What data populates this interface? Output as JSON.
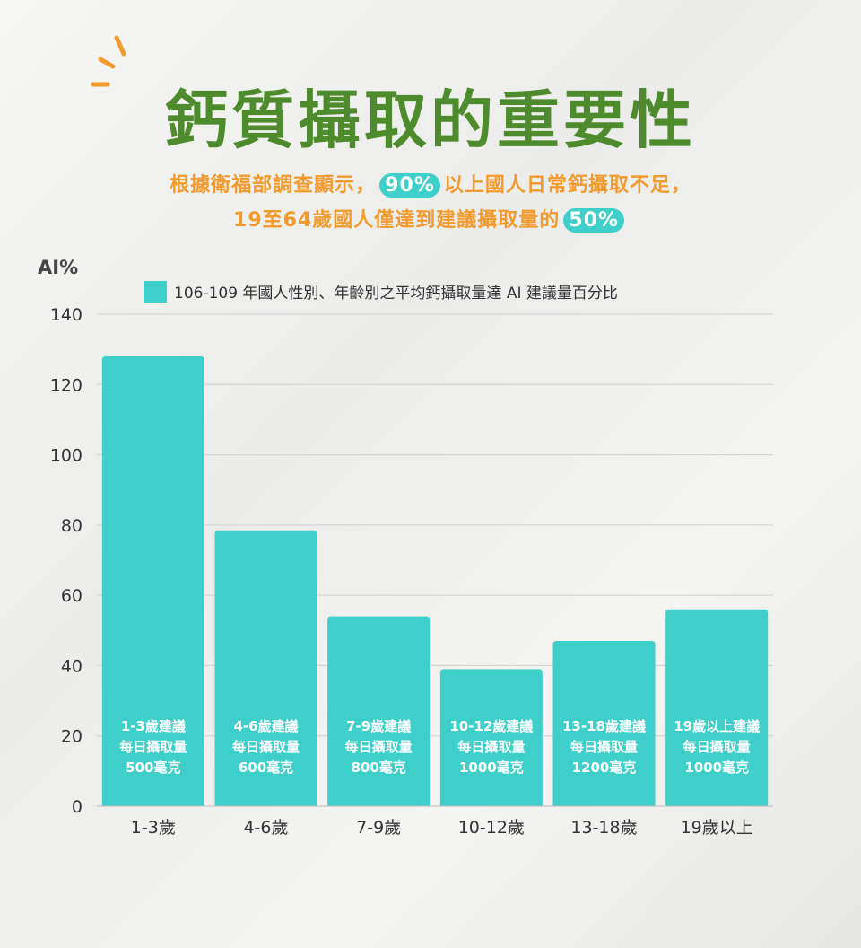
{
  "header": {
    "title": "鈣質攝取的重要性",
    "sub1_a": "根據衛福部調查顯示，",
    "sub1_pill": "90%",
    "sub1_b": "以上國人日常鈣攝取不足，",
    "sub2_a": "19至64歲國人僅達到建議攝取量的",
    "sub2_pill": "50%"
  },
  "colors": {
    "title": "#4e8b2c",
    "subtitle": "#f29a2e",
    "bar": "#3fcfcb",
    "spark": "#f29a2e"
  },
  "chart_data": {
    "type": "bar",
    "ylabel": "AI%",
    "ylim": [
      0,
      140
    ],
    "yticks": [
      0,
      20,
      40,
      60,
      80,
      100,
      120,
      140
    ],
    "grid": true,
    "legend_position": "top",
    "categories": [
      "1-3歲",
      "4-6歲",
      "7-9歲",
      "10-12歲",
      "13-18歲",
      "19歲以上"
    ],
    "series": [
      {
        "name": "106-109 年國人性別、年齡別之平均鈣攝取量達 AI 建議量百分比",
        "values": [
          128,
          78.5,
          54,
          39,
          47,
          56
        ]
      }
    ],
    "bar_annotations": [
      [
        "1-3歲建議",
        "每日攝取量",
        "500毫克"
      ],
      [
        "4-6歲建議",
        "每日攝取量",
        "600毫克"
      ],
      [
        "7-9歲建議",
        "每日攝取量",
        "800毫克"
      ],
      [
        "10-12歲建議",
        "每日攝取量",
        "1000毫克"
      ],
      [
        "13-18歲建議",
        "每日攝取量",
        "1200毫克"
      ],
      [
        "19歲以上建議",
        "每日攝取量",
        "1000毫克"
      ]
    ]
  }
}
